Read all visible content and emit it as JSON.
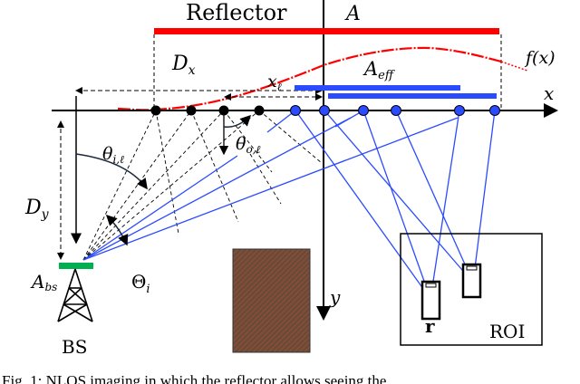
{
  "labels": {
    "reflector": "Reflector",
    "A": "A",
    "f": "f(x)",
    "Dx": "D",
    "Dx_sub": "x",
    "Aeff": "A",
    "Aeff_sub": "eff",
    "xl": "x",
    "xl_sub": "ℓ",
    "x_axis": "x",
    "y_axis": "y",
    "theta_i": "θ",
    "theta_i_sub": "i,ℓ",
    "theta_o": "θ",
    "theta_o_sub": "o,ℓ",
    "Theta_i": "Θ",
    "Theta_i_sub": "i",
    "Dy": "D",
    "Dy_sub": "y",
    "Abs": "A",
    "Abs_sub": "bs",
    "bs": "BS",
    "r": "r",
    "roi": "ROI"
  },
  "caption": "Fig. 1:  NLOS imaging in which the reflector allows seeing the",
  "colors": {
    "reflector": "#ff0000",
    "beam": "#2b4bff",
    "bs_antenna": "#00b050",
    "building": "#7a4a36"
  }
}
